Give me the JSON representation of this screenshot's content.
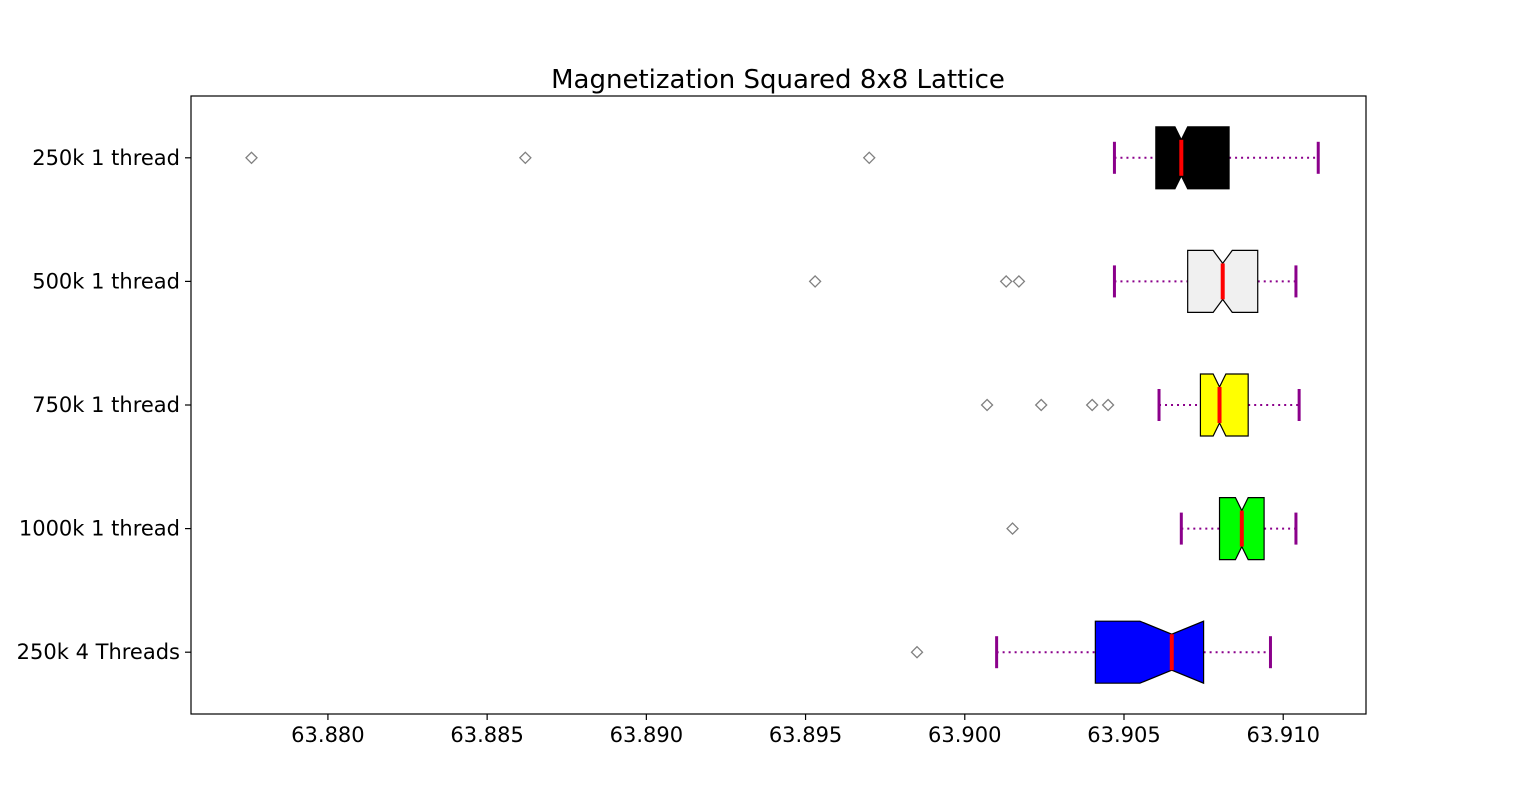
{
  "chart_data": {
    "type": "boxplot",
    "orientation": "horizontal",
    "notched": true,
    "title": "Magnetization Squared 8x8 Lattice",
    "xlabel": "",
    "ylabel": "",
    "xlim": [
      63.8757,
      63.9126
    ],
    "xticks": [
      63.88,
      63.885,
      63.89,
      63.895,
      63.9,
      63.905,
      63.91
    ],
    "xtick_labels": [
      "63.880",
      "63.885",
      "63.890",
      "63.895",
      "63.900",
      "63.905",
      "63.910"
    ],
    "grid": false,
    "legend": "none",
    "colors": {
      "median": "#ff0000",
      "whisker": "#8b008b",
      "outlier_edge": "#808080",
      "box_edge": "#000000",
      "axes": "#000000",
      "background": "#ffffff"
    },
    "categories": [
      "250k 1 thread",
      "500k 1 thread",
      "750k 1 thread",
      "1000k 1 thread",
      "250k 4 Threads"
    ],
    "series": [
      {
        "name": "250k 1 thread",
        "fill": "#000000",
        "whisker_low": 63.9047,
        "q1": 63.906,
        "notch_low": 63.9066,
        "median": 63.9068,
        "notch_high": 63.907,
        "q3": 63.9083,
        "whisker_high": 63.9111,
        "outliers": [
          63.8776,
          63.8862,
          63.897
        ]
      },
      {
        "name": "500k 1 thread",
        "fill": "#f0f0f0",
        "whisker_low": 63.9047,
        "q1": 63.907,
        "notch_low": 63.9078,
        "median": 63.9081,
        "notch_high": 63.9084,
        "q3": 63.9092,
        "whisker_high": 63.9104,
        "outliers": [
          63.8953,
          63.9013,
          63.9017
        ]
      },
      {
        "name": "750k 1 thread",
        "fill": "#ffff00",
        "whisker_low": 63.9061,
        "q1": 63.9074,
        "notch_low": 63.9078,
        "median": 63.908,
        "notch_high": 63.9082,
        "q3": 63.9089,
        "whisker_high": 63.9105,
        "outliers": [
          63.9007,
          63.9024,
          63.904,
          63.9045
        ]
      },
      {
        "name": "1000k 1 thread",
        "fill": "#00ff00",
        "whisker_low": 63.9068,
        "q1": 63.908,
        "notch_low": 63.9085,
        "median": 63.9087,
        "notch_high": 63.9089,
        "q3": 63.9094,
        "whisker_high": 63.9104,
        "outliers": [
          63.9015
        ]
      },
      {
        "name": "250k 4 Threads",
        "fill": "#0000ff",
        "whisker_low": 63.901,
        "q1": 63.9041,
        "notch_low": 63.9055,
        "median": 63.9065,
        "notch_high": 63.9075,
        "q3": 63.9075,
        "whisker_high": 63.9096,
        "outliers": [
          63.8985
        ]
      }
    ]
  }
}
